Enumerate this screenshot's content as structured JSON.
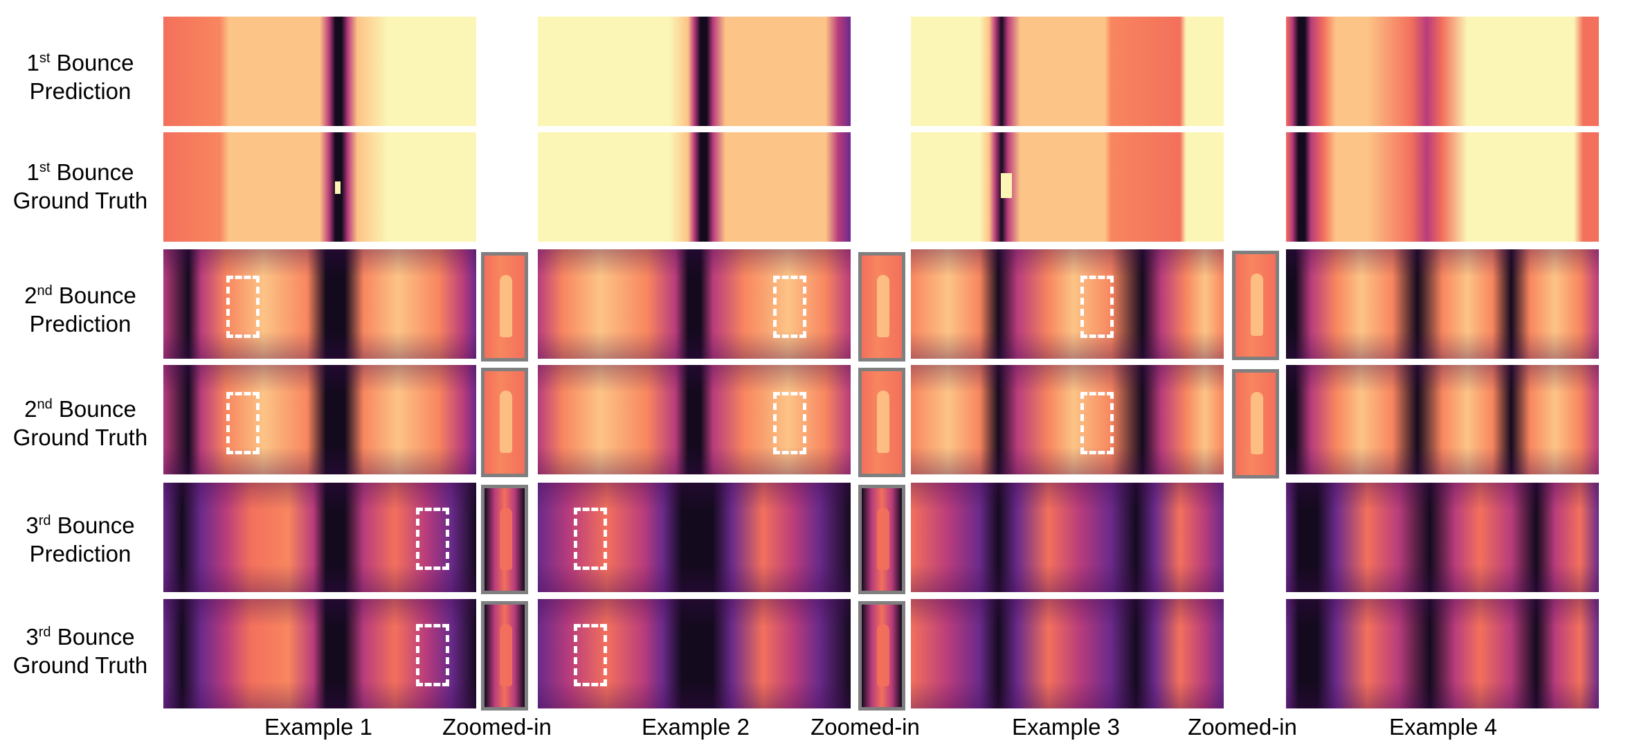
{
  "rows": [
    {
      "num": "1",
      "sup": "st",
      "word": "Bounce",
      "kind": "Prediction"
    },
    {
      "num": "1",
      "sup": "st",
      "word": "Bounce",
      "kind": "Ground Truth"
    },
    {
      "num": "2",
      "sup": "nd",
      "word": "Bounce",
      "kind": "Prediction"
    },
    {
      "num": "2",
      "sup": "nd",
      "word": "Bounce",
      "kind": "Ground Truth"
    },
    {
      "num": "3",
      "sup": "rd",
      "word": "Bounce",
      "kind": "Prediction"
    },
    {
      "num": "3",
      "sup": "rd",
      "word": "Bounce",
      "kind": "Ground Truth"
    }
  ],
  "columns": [
    "Example 1",
    "Zoomed-in",
    "Example 2",
    "Zoomed-in",
    "Example 3",
    "Zoomed-in",
    "Example 4"
  ],
  "colors": {
    "pale": "#fbf6b6",
    "peach": "#fcc486",
    "orange": "#f8865f",
    "coral": "#f3705c",
    "magenta": "#b83c7c",
    "purple": "#6a2a8a",
    "dark": "#140a1e",
    "zoom_border": "#7f7f7f",
    "dash": "#ffffff"
  }
}
